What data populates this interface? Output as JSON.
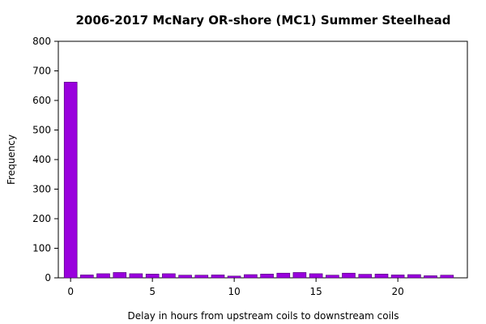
{
  "chart_data": {
    "type": "bar",
    "title": "2006-2017 McNary OR-shore (MC1) Summer Steelhead",
    "xlabel": "Delay in hours from upstream coils to downstream coils",
    "ylabel": "Frequency",
    "xlim": [
      -0.75,
      24.25
    ],
    "ylim": [
      0,
      800
    ],
    "x_ticks": [
      0,
      5,
      10,
      15,
      20
    ],
    "y_ticks": [
      0,
      100,
      200,
      300,
      400,
      500,
      600,
      700,
      800
    ],
    "grid": false,
    "legend": "none",
    "bar_color": "#9900dd",
    "bar_edge_color": "#4a0070",
    "categories": [
      0,
      1,
      2,
      3,
      4,
      5,
      6,
      7,
      8,
      9,
      10,
      11,
      12,
      13,
      14,
      15,
      16,
      17,
      18,
      19,
      20,
      21,
      22,
      23
    ],
    "values": [
      662,
      10,
      14,
      18,
      14,
      13,
      14,
      9,
      9,
      10,
      6,
      11,
      13,
      16,
      18,
      14,
      9,
      16,
      12,
      13,
      10,
      11,
      7,
      9
    ]
  }
}
